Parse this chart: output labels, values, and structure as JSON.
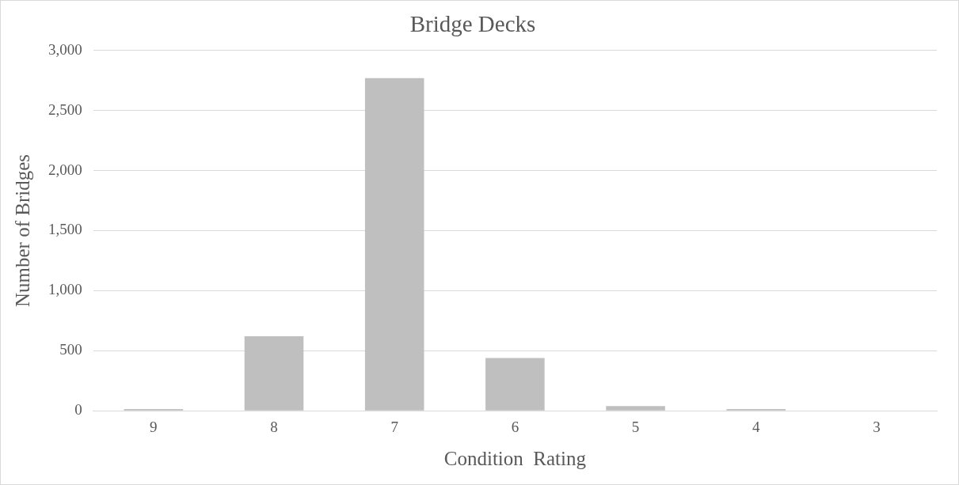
{
  "chart_data": {
    "type": "bar",
    "title": "Bridge Decks",
    "xlabel": "Condition  Rating",
    "ylabel": "Number of Bridges",
    "categories": [
      "9",
      "8",
      "7",
      "6",
      "5",
      "4",
      "3"
    ],
    "values": [
      15,
      620,
      2770,
      440,
      40,
      15,
      0
    ],
    "color": "#bfbfbf",
    "ylim": [
      0,
      3000
    ],
    "yticks": [
      {
        "value": 0,
        "label": "0"
      },
      {
        "value": 500,
        "label": "500"
      },
      {
        "value": 1000,
        "label": "1,000"
      },
      {
        "value": 1500,
        "label": "1,500"
      },
      {
        "value": 2000,
        "label": "2,000"
      },
      {
        "value": 2500,
        "label": "2,500"
      },
      {
        "value": 3000,
        "label": "3,000"
      }
    ],
    "grid": "y",
    "legend": false
  }
}
